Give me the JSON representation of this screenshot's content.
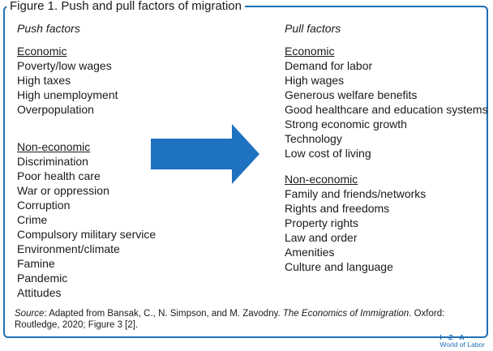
{
  "figure_title": "Figure 1. Push and pull factors of migration",
  "push": {
    "header": "Push factors",
    "economic_label": "Economic",
    "economic": [
      "Poverty/low wages",
      "High taxes",
      "High unemployment",
      "Overpopulation"
    ],
    "noneconomic_label": "Non-economic",
    "noneconomic": [
      "Discrimination",
      "Poor health care",
      "War or oppression",
      "Corruption",
      "Crime",
      "Compulsory military service",
      "Environment/climate",
      "Famine",
      "Pandemic",
      "Attitudes"
    ]
  },
  "pull": {
    "header": "Pull factors",
    "economic_label": "Economic",
    "economic": [
      "Demand for labor",
      "High wages",
      "Generous welfare benefits",
      "Good healthcare and education systems",
      "Strong economic growth",
      "Technology",
      "Low cost of living"
    ],
    "noneconomic_label": "Non-economic",
    "noneconomic": [
      "Family and friends/networks",
      "Rights and freedoms",
      "Property rights",
      "Law and order",
      "Amenities",
      "Culture and language"
    ]
  },
  "source": {
    "label": "Source",
    "text_before": ": Adapted from Bansak, C., N. Simpson, and M. Zavodny. ",
    "book": "The Economics of Immigration",
    "text_after": ". Oxford: Routledge, 2020; Figure 3 [2]."
  },
  "logo": {
    "line1": "I Z A",
    "line2": "World of Labor"
  },
  "colors": {
    "accent": "#1f6fb5",
    "arrow": "#1f72c0"
  }
}
